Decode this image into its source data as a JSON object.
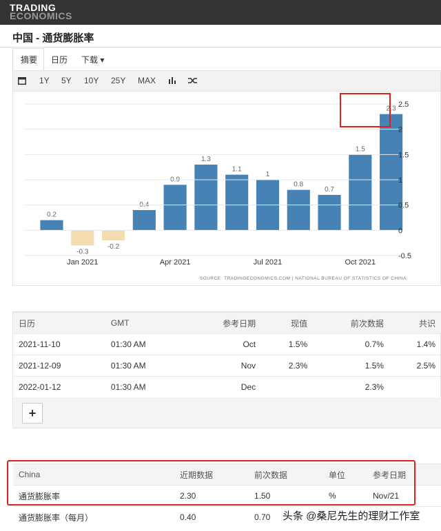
{
  "header": {
    "logo_line1": "TRADING",
    "logo_line2": "ECONOMICS",
    "title": "中国 - 通货膨胀率"
  },
  "tabs": [
    "摘要",
    "日历",
    "下载"
  ],
  "toolbar": [
    "1Y",
    "5Y",
    "10Y",
    "25Y",
    "MAX"
  ],
  "chart_data": {
    "type": "bar",
    "categories": [
      null,
      "Jan 2021",
      null,
      null,
      "Apr 2021",
      null,
      null,
      "Jul 2021",
      null,
      null,
      "Oct 2021",
      null
    ],
    "values": [
      0.2,
      -0.3,
      -0.2,
      0.4,
      0.9,
      1.3,
      1.1,
      1,
      0.8,
      0.7,
      1.5,
      2.3
    ],
    "color": "#4682b4",
    "negative_color": "#f3dcb0",
    "ylim": [
      -0.5,
      2.5
    ],
    "yticks": [
      -0.5,
      0,
      0.5,
      1,
      1.5,
      2,
      2.5
    ],
    "grid": true,
    "source": "SOURCE: TRADINGECONOMICS.COM | NATIONAL BUREAU OF STATISTICS OF CHINA"
  },
  "calendar": {
    "header": [
      "日历",
      "GMT",
      "参考日期",
      "现值",
      "前次数据",
      "共识"
    ],
    "rows": [
      [
        "2021-11-10",
        "01:30 AM",
        "Oct",
        "1.5%",
        "0.7%",
        "1.4%"
      ],
      [
        "2021-12-09",
        "01:30 AM",
        "Nov",
        "2.3%",
        "1.5%",
        "2.5%"
      ],
      [
        "2022-01-12",
        "01:30 AM",
        "Dec",
        "",
        "2.3%",
        ""
      ]
    ],
    "more": "+"
  },
  "summary": {
    "header": [
      "China",
      "近期数据",
      "前次数据",
      "单位",
      "参考日期"
    ],
    "rows": [
      [
        "通货膨胀率",
        "2.30",
        "1.50",
        "%",
        "Nov/21"
      ],
      [
        "通货膨胀率（每月）",
        "0.40",
        "0.70",
        "",
        ""
      ]
    ]
  },
  "watermark": "头条 @桑尼先生的理财工作室"
}
